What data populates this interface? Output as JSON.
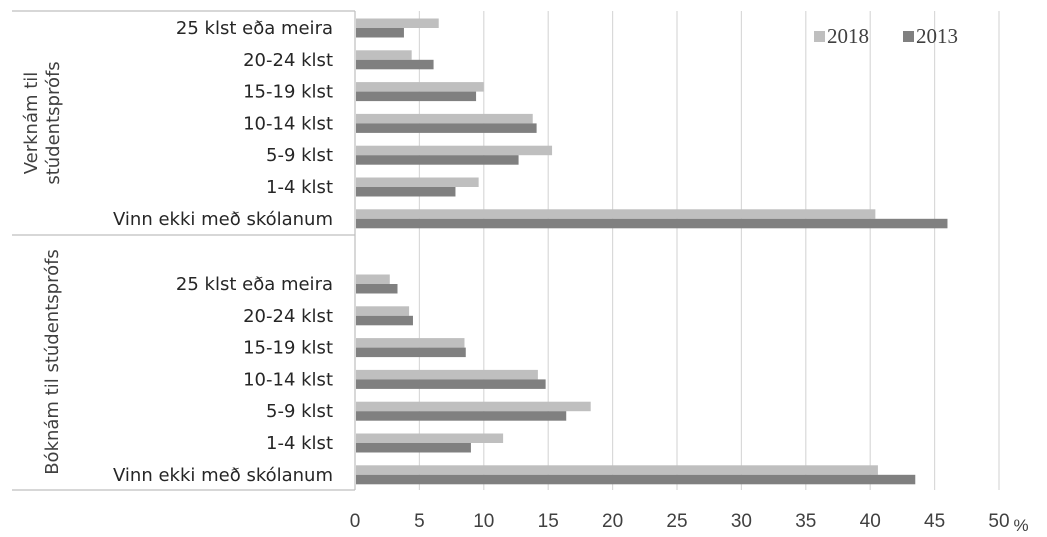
{
  "chart_data": {
    "type": "bar",
    "orientation": "horizontal",
    "x_unit_label": "%",
    "xlim": [
      0,
      50
    ],
    "x_ticks": [
      "0",
      "5",
      "10",
      "15",
      "20",
      "25",
      "30",
      "35",
      "40",
      "45",
      "50"
    ],
    "grid": "vertical",
    "legend_position": "top-right",
    "legend": [
      {
        "name": "2018",
        "color": "#bfbfbf"
      },
      {
        "name": "2013",
        "color": "#808080"
      }
    ],
    "groups": [
      {
        "label": "Verknám til stúdentsprófs",
        "label_lines": [
          "Verknám til",
          "stúdentsprófs"
        ],
        "categories": [
          "25 klst eða meira",
          "20-24 klst",
          "15-19 klst",
          "10-14 klst",
          "5-9 klst",
          "1-4 klst",
          "Vinn ekki með skólanum"
        ],
        "series": [
          {
            "name": "2018",
            "values": [
              6.5,
              4.4,
              10.0,
              13.8,
              15.3,
              9.6,
              40.4
            ]
          },
          {
            "name": "2013",
            "values": [
              3.8,
              6.1,
              9.4,
              14.1,
              12.7,
              7.8,
              46.0
            ]
          }
        ]
      },
      {
        "label": "Bóknám til stúdentsprófs",
        "label_lines": [
          "Bóknám til stúdentsprófs"
        ],
        "categories": [
          "25 klst eða meira",
          "20-24 klst",
          "15-19 klst",
          "10-14 klst",
          "5-9 klst",
          "1-4 klst",
          "Vinn ekki með skólanum"
        ],
        "series": [
          {
            "name": "2018",
            "values": [
              2.7,
              4.2,
              8.5,
              14.2,
              18.3,
              11.5,
              40.6
            ]
          },
          {
            "name": "2013",
            "values": [
              3.3,
              4.5,
              8.6,
              14.8,
              16.4,
              9.0,
              43.5
            ]
          }
        ]
      }
    ]
  }
}
